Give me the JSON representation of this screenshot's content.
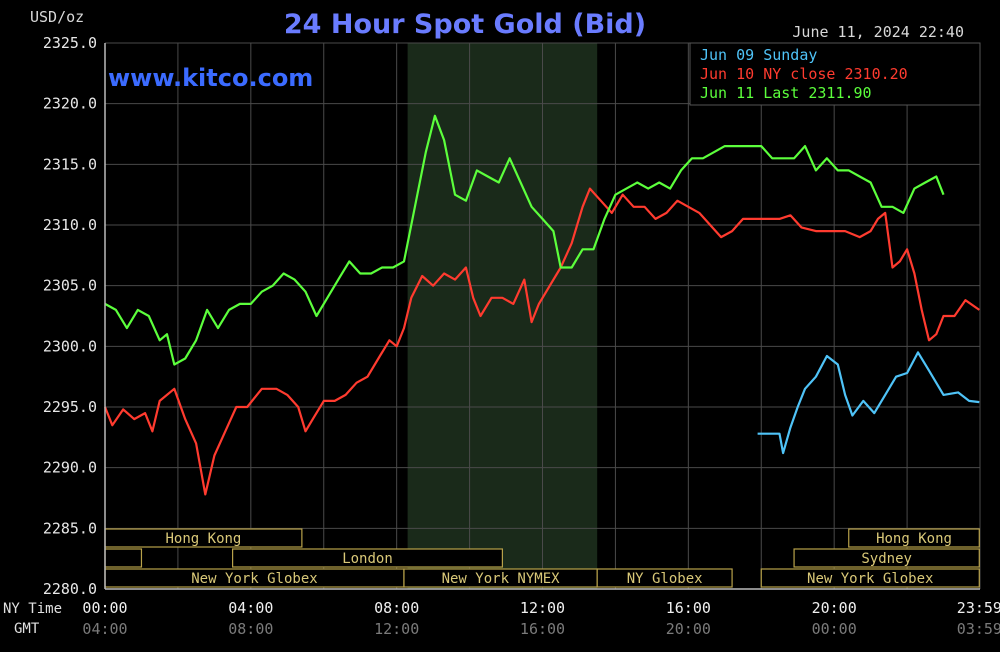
{
  "chart_data": {
    "type": "line",
    "title": "24 Hour Spot Gold (Bid)",
    "unit_label": "USD/oz",
    "watermark": "www.kitco.com",
    "timestamp": "June 11, 2024 22:40",
    "ylim": [
      2280,
      2325
    ],
    "yticks": [
      2325,
      2320,
      2315,
      2310,
      2305,
      2300,
      2295,
      2290,
      2285,
      2280
    ],
    "ytick_labels": [
      "2325.0",
      "2320.0",
      "2315.0",
      "2310.0",
      "2305.0",
      "2300.0",
      "2295.0",
      "2290.0",
      "2285.0",
      "2280.0"
    ],
    "xlim": [
      0,
      24
    ],
    "xticks": [
      0,
      4,
      8,
      12,
      16,
      20,
      23.983
    ],
    "row_labels": {
      "ny": "NY Time",
      "gmt": "GMT"
    },
    "xtick_labels_ny": [
      "00:00",
      "04:00",
      "08:00",
      "12:00",
      "16:00",
      "20:00",
      "23:59"
    ],
    "xtick_labels_gmt": [
      "04:00",
      "08:00",
      "12:00",
      "16:00",
      "20:00",
      "00:00",
      "03:59"
    ],
    "highlight_range": [
      8.3,
      13.5
    ],
    "grid": true,
    "legend_position": "top-right",
    "series": [
      {
        "name": "Jun 09 Sunday",
        "legend": "Jun 09 Sunday",
        "color": "#4fc3f7",
        "points": [
          [
            17.9,
            2292.8
          ],
          [
            18.5,
            2292.8
          ],
          [
            18.6,
            2291.2
          ],
          [
            18.8,
            2293.3
          ],
          [
            19.0,
            2295.0
          ],
          [
            19.2,
            2296.5
          ],
          [
            19.5,
            2297.5
          ],
          [
            19.8,
            2299.2
          ],
          [
            20.1,
            2298.5
          ],
          [
            20.3,
            2296.0
          ],
          [
            20.5,
            2294.3
          ],
          [
            20.8,
            2295.5
          ],
          [
            21.1,
            2294.5
          ],
          [
            21.4,
            2296.0
          ],
          [
            21.7,
            2297.5
          ],
          [
            22.0,
            2297.8
          ],
          [
            22.3,
            2299.5
          ],
          [
            22.6,
            2298.0
          ],
          [
            23.0,
            2296.0
          ],
          [
            23.4,
            2296.2
          ],
          [
            23.7,
            2295.5
          ],
          [
            23.98,
            2295.4
          ]
        ]
      },
      {
        "name": "Jun 10 NY close",
        "legend": "Jun 10 NY close 2310.20",
        "color": "#ff3b2f",
        "points": [
          [
            0.0,
            2295.0
          ],
          [
            0.2,
            2293.5
          ],
          [
            0.5,
            2294.8
          ],
          [
            0.8,
            2294.0
          ],
          [
            1.1,
            2294.5
          ],
          [
            1.3,
            2293.0
          ],
          [
            1.5,
            2295.5
          ],
          [
            1.9,
            2296.5
          ],
          [
            2.2,
            2294.0
          ],
          [
            2.5,
            2292.0
          ],
          [
            2.75,
            2287.8
          ],
          [
            3.0,
            2291.0
          ],
          [
            3.3,
            2293.0
          ],
          [
            3.6,
            2295.0
          ],
          [
            3.9,
            2295.0
          ],
          [
            4.3,
            2296.5
          ],
          [
            4.7,
            2296.5
          ],
          [
            5.0,
            2296.0
          ],
          [
            5.3,
            2295.0
          ],
          [
            5.5,
            2293.0
          ],
          [
            5.7,
            2294.0
          ],
          [
            6.0,
            2295.5
          ],
          [
            6.3,
            2295.5
          ],
          [
            6.6,
            2296.0
          ],
          [
            6.9,
            2297.0
          ],
          [
            7.2,
            2297.5
          ],
          [
            7.5,
            2299.0
          ],
          [
            7.8,
            2300.5
          ],
          [
            8.0,
            2300.0
          ],
          [
            8.2,
            2301.5
          ],
          [
            8.4,
            2304.0
          ],
          [
            8.7,
            2305.8
          ],
          [
            9.0,
            2305.0
          ],
          [
            9.3,
            2306.0
          ],
          [
            9.6,
            2305.5
          ],
          [
            9.9,
            2306.5
          ],
          [
            10.1,
            2304.0
          ],
          [
            10.3,
            2302.5
          ],
          [
            10.6,
            2304.0
          ],
          [
            10.9,
            2304.0
          ],
          [
            11.2,
            2303.5
          ],
          [
            11.5,
            2305.5
          ],
          [
            11.7,
            2302.0
          ],
          [
            11.9,
            2303.5
          ],
          [
            12.2,
            2305.0
          ],
          [
            12.5,
            2306.5
          ],
          [
            12.8,
            2308.5
          ],
          [
            13.1,
            2311.5
          ],
          [
            13.3,
            2313.0
          ],
          [
            13.6,
            2312.0
          ],
          [
            13.9,
            2311.0
          ],
          [
            14.2,
            2312.5
          ],
          [
            14.5,
            2311.5
          ],
          [
            14.8,
            2311.5
          ],
          [
            15.1,
            2310.5
          ],
          [
            15.4,
            2311.0
          ],
          [
            15.7,
            2312.0
          ],
          [
            16.0,
            2311.5
          ],
          [
            16.3,
            2311.0
          ],
          [
            16.6,
            2310.0
          ],
          [
            16.9,
            2309.0
          ],
          [
            17.2,
            2309.5
          ],
          [
            17.5,
            2310.5
          ],
          [
            18.0,
            2310.5
          ],
          [
            18.5,
            2310.5
          ],
          [
            18.8,
            2310.8
          ],
          [
            19.1,
            2309.8
          ],
          [
            19.5,
            2309.5
          ],
          [
            19.9,
            2309.5
          ],
          [
            20.3,
            2309.5
          ],
          [
            20.7,
            2309.0
          ],
          [
            21.0,
            2309.5
          ],
          [
            21.2,
            2310.5
          ],
          [
            21.4,
            2311.0
          ],
          [
            21.6,
            2306.5
          ],
          [
            21.8,
            2307.0
          ],
          [
            22.0,
            2308.0
          ],
          [
            22.2,
            2306.0
          ],
          [
            22.4,
            2303.0
          ],
          [
            22.6,
            2300.5
          ],
          [
            22.8,
            2301.0
          ],
          [
            23.0,
            2302.5
          ],
          [
            23.3,
            2302.5
          ],
          [
            23.6,
            2303.8
          ],
          [
            23.98,
            2303.0
          ]
        ]
      },
      {
        "name": "Jun 11 Last",
        "legend": "Jun 11 Last 2311.90",
        "color": "#5cff3c",
        "points": [
          [
            0.0,
            2303.5
          ],
          [
            0.3,
            2303.0
          ],
          [
            0.6,
            2301.5
          ],
          [
            0.9,
            2303.0
          ],
          [
            1.2,
            2302.5
          ],
          [
            1.5,
            2300.5
          ],
          [
            1.7,
            2301.0
          ],
          [
            1.9,
            2298.5
          ],
          [
            2.2,
            2299.0
          ],
          [
            2.5,
            2300.5
          ],
          [
            2.8,
            2303.0
          ],
          [
            3.1,
            2301.5
          ],
          [
            3.4,
            2303.0
          ],
          [
            3.7,
            2303.5
          ],
          [
            4.0,
            2303.5
          ],
          [
            4.3,
            2304.5
          ],
          [
            4.6,
            2305.0
          ],
          [
            4.9,
            2306.0
          ],
          [
            5.2,
            2305.5
          ],
          [
            5.5,
            2304.5
          ],
          [
            5.8,
            2302.5
          ],
          [
            6.1,
            2304.0
          ],
          [
            6.4,
            2305.5
          ],
          [
            6.7,
            2307.0
          ],
          [
            7.0,
            2306.0
          ],
          [
            7.3,
            2306.0
          ],
          [
            7.6,
            2306.5
          ],
          [
            7.9,
            2306.5
          ],
          [
            8.2,
            2307.0
          ],
          [
            8.5,
            2311.5
          ],
          [
            8.8,
            2316.0
          ],
          [
            9.05,
            2319.0
          ],
          [
            9.3,
            2317.0
          ],
          [
            9.6,
            2312.5
          ],
          [
            9.9,
            2312.0
          ],
          [
            10.2,
            2314.5
          ],
          [
            10.5,
            2314.0
          ],
          [
            10.8,
            2313.5
          ],
          [
            11.1,
            2315.5
          ],
          [
            11.4,
            2313.5
          ],
          [
            11.7,
            2311.5
          ],
          [
            12.0,
            2310.5
          ],
          [
            12.3,
            2309.5
          ],
          [
            12.5,
            2306.5
          ],
          [
            12.8,
            2306.5
          ],
          [
            13.1,
            2308.0
          ],
          [
            13.4,
            2308.0
          ],
          [
            13.7,
            2310.5
          ],
          [
            14.0,
            2312.5
          ],
          [
            14.3,
            2313.0
          ],
          [
            14.6,
            2313.5
          ],
          [
            14.9,
            2313.0
          ],
          [
            15.2,
            2313.5
          ],
          [
            15.5,
            2313.0
          ],
          [
            15.8,
            2314.5
          ],
          [
            16.1,
            2315.5
          ],
          [
            16.4,
            2315.5
          ],
          [
            16.7,
            2316.0
          ],
          [
            17.0,
            2316.5
          ],
          [
            17.5,
            2316.5
          ],
          [
            18.0,
            2316.5
          ],
          [
            18.3,
            2315.5
          ],
          [
            18.6,
            2315.5
          ],
          [
            18.9,
            2315.5
          ],
          [
            19.2,
            2316.5
          ],
          [
            19.5,
            2314.5
          ],
          [
            19.8,
            2315.5
          ],
          [
            20.1,
            2314.5
          ],
          [
            20.4,
            2314.5
          ],
          [
            20.7,
            2314.0
          ],
          [
            21.0,
            2313.5
          ],
          [
            21.3,
            2311.5
          ],
          [
            21.6,
            2311.5
          ],
          [
            21.9,
            2311.0
          ],
          [
            22.2,
            2313.0
          ],
          [
            22.5,
            2313.5
          ],
          [
            22.8,
            2314.0
          ],
          [
            23.0,
            2312.5
          ]
        ]
      }
    ],
    "session_bars": [
      {
        "label": "Hong Kong",
        "start": 0.0,
        "end": 5.4,
        "row": 0
      },
      {
        "label": "Hong Kong",
        "start": 20.4,
        "end": 23.98,
        "row": 0
      },
      {
        "label": "",
        "start": 0.0,
        "end": 1.0,
        "row": 1
      },
      {
        "label": "London",
        "start": 3.5,
        "end": 10.9,
        "row": 1
      },
      {
        "label": "Sydney",
        "start": 18.9,
        "end": 23.98,
        "row": 1
      },
      {
        "label": "New York Globex",
        "start": 0.0,
        "end": 8.2,
        "row": 2
      },
      {
        "label": "New York NYMEX",
        "start": 8.2,
        "end": 13.5,
        "row": 2
      },
      {
        "label": "NY Globex",
        "start": 13.5,
        "end": 17.2,
        "row": 2
      },
      {
        "label": "New York Globex",
        "start": 18.0,
        "end": 23.98,
        "row": 2
      }
    ]
  }
}
